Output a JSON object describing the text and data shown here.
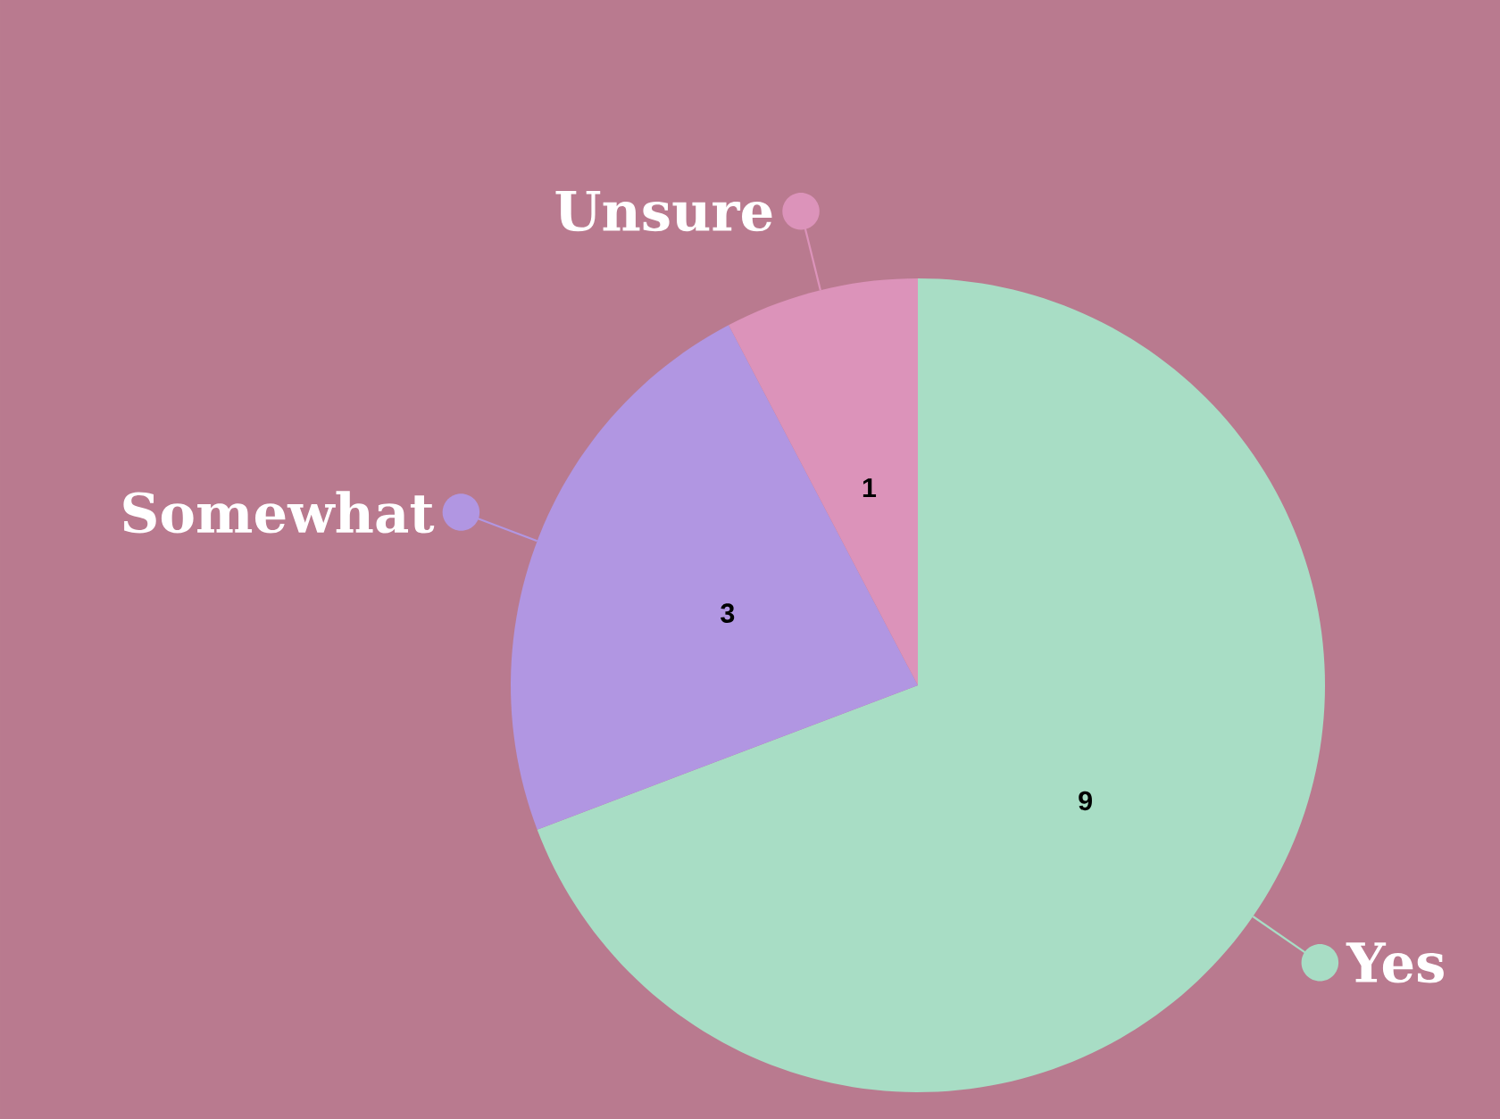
{
  "chart_data": {
    "type": "pie",
    "categories": [
      "Yes",
      "Somewhat",
      "Unsure"
    ],
    "values": [
      9,
      3,
      1
    ],
    "colors": [
      "#a8ddc5",
      "#b196e2",
      "#dc93ba"
    ],
    "data_labels": true,
    "legend": "top left"
  }
}
